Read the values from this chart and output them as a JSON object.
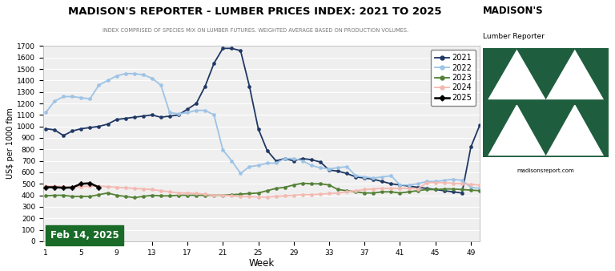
{
  "title": "MADISON'S REPORTER - LUMBER PRICES INDEX: 2021 TO 2025",
  "subtitle": "INDEX COMPRISED OF SPECIES MIX ON LUMBER FUTURES. WEIGHTED AVERAGE BASED ON PRODUCTION VOLUMES.",
  "xlabel": "Week",
  "ylabel": "US$ per 1000 fbm",
  "ylim": [
    0,
    1700
  ],
  "yticks": [
    0,
    100,
    200,
    300,
    400,
    500,
    600,
    700,
    800,
    900,
    1000,
    1100,
    1200,
    1300,
    1400,
    1500,
    1600,
    1700
  ],
  "xlim": [
    1,
    51
  ],
  "xticks": [
    1,
    5,
    9,
    13,
    17,
    21,
    25,
    29,
    33,
    37,
    41,
    45,
    49
  ],
  "date_label": "Feb 14, 2025",
  "background_color": "#ffffff",
  "plot_bg_color": "#efefef",
  "grid_color": "#ffffff",
  "logo_green": "#1e5e3e",
  "logo_text": "madisonsreport.com",
  "logo_title": "MADISON'S",
  "logo_subtitle": "Lumber Reporter",
  "series": {
    "2021": {
      "color": "#1f3864",
      "marker": "o",
      "lw": 1.3,
      "ms": 3.0,
      "weeks": [
        1,
        2,
        3,
        4,
        5,
        6,
        7,
        8,
        9,
        10,
        11,
        12,
        13,
        14,
        15,
        16,
        17,
        18,
        19,
        20,
        21,
        22,
        23,
        24,
        25,
        26,
        27,
        28,
        29,
        30,
        31,
        32,
        33,
        34,
        35,
        36,
        37,
        38,
        39,
        40,
        41,
        42,
        43,
        44,
        45,
        46,
        47,
        48,
        49,
        50
      ],
      "values": [
        980,
        970,
        920,
        960,
        980,
        990,
        1000,
        1020,
        1060,
        1070,
        1080,
        1090,
        1100,
        1080,
        1090,
        1100,
        1150,
        1200,
        1350,
        1550,
        1680,
        1680,
        1660,
        1350,
        980,
        790,
        700,
        720,
        700,
        720,
        710,
        690,
        620,
        610,
        590,
        560,
        550,
        540,
        520,
        500,
        490,
        480,
        470,
        460,
        450,
        440,
        430,
        420,
        820,
        1010
      ]
    },
    "2022": {
      "color": "#9dc3e6",
      "marker": "o",
      "lw": 1.3,
      "ms": 3.0,
      "weeks": [
        1,
        2,
        3,
        4,
        5,
        6,
        7,
        8,
        9,
        10,
        11,
        12,
        13,
        14,
        15,
        16,
        17,
        18,
        19,
        20,
        21,
        22,
        23,
        24,
        25,
        26,
        27,
        28,
        29,
        30,
        31,
        32,
        33,
        34,
        35,
        36,
        37,
        38,
        39,
        40,
        41,
        42,
        43,
        44,
        45,
        46,
        47,
        48,
        49,
        50
      ],
      "values": [
        1120,
        1220,
        1260,
        1260,
        1250,
        1240,
        1360,
        1400,
        1440,
        1460,
        1460,
        1450,
        1420,
        1360,
        1120,
        1110,
        1120,
        1140,
        1140,
        1100,
        795,
        700,
        590,
        650,
        660,
        680,
        680,
        720,
        720,
        700,
        660,
        640,
        630,
        640,
        650,
        570,
        560,
        550,
        560,
        570,
        490,
        490,
        500,
        520,
        520,
        530,
        540,
        530,
        470,
        460
      ]
    },
    "2023": {
      "color": "#538135",
      "marker": "o",
      "lw": 1.3,
      "ms": 3.0,
      "weeks": [
        1,
        2,
        3,
        4,
        5,
        6,
        7,
        8,
        9,
        10,
        11,
        12,
        13,
        14,
        15,
        16,
        17,
        18,
        19,
        20,
        21,
        22,
        23,
        24,
        25,
        26,
        27,
        28,
        29,
        30,
        31,
        32,
        33,
        34,
        35,
        36,
        37,
        38,
        39,
        40,
        41,
        42,
        43,
        44,
        45,
        46,
        47,
        48,
        49,
        50
      ],
      "values": [
        395,
        400,
        400,
        390,
        390,
        390,
        405,
        420,
        400,
        390,
        380,
        390,
        400,
        395,
        395,
        400,
        400,
        400,
        400,
        400,
        400,
        405,
        410,
        415,
        420,
        440,
        460,
        470,
        490,
        505,
        500,
        500,
        490,
        450,
        440,
        430,
        420,
        420,
        430,
        430,
        420,
        430,
        440,
        450,
        450,
        455,
        455,
        450,
        445,
        440
      ]
    },
    "2024": {
      "color": "#f4b8b0",
      "marker": "o",
      "lw": 1.3,
      "ms": 3.0,
      "weeks": [
        1,
        2,
        3,
        4,
        5,
        6,
        7,
        8,
        9,
        10,
        11,
        12,
        13,
        14,
        15,
        16,
        17,
        18,
        19,
        20,
        21,
        22,
        23,
        24,
        25,
        26,
        27,
        28,
        29,
        30,
        31,
        32,
        33,
        34,
        35,
        36,
        37,
        38,
        39,
        40,
        41,
        42,
        43,
        44,
        45,
        46,
        47,
        48,
        49,
        50
      ],
      "values": [
        480,
        480,
        475,
        470,
        475,
        480,
        480,
        475,
        470,
        465,
        460,
        455,
        450,
        440,
        430,
        420,
        420,
        415,
        410,
        400,
        400,
        395,
        390,
        390,
        385,
        385,
        390,
        395,
        400,
        405,
        405,
        410,
        415,
        420,
        430,
        440,
        450,
        455,
        460,
        460,
        460,
        460,
        455,
        510,
        510,
        510,
        505,
        500,
        495,
        490
      ]
    },
    "2025": {
      "color": "#000000",
      "marker": "D",
      "lw": 1.8,
      "ms": 3.5,
      "weeks": [
        1,
        2,
        3,
        4,
        5,
        6,
        7
      ],
      "values": [
        470,
        470,
        465,
        468,
        500,
        505,
        470
      ]
    }
  }
}
